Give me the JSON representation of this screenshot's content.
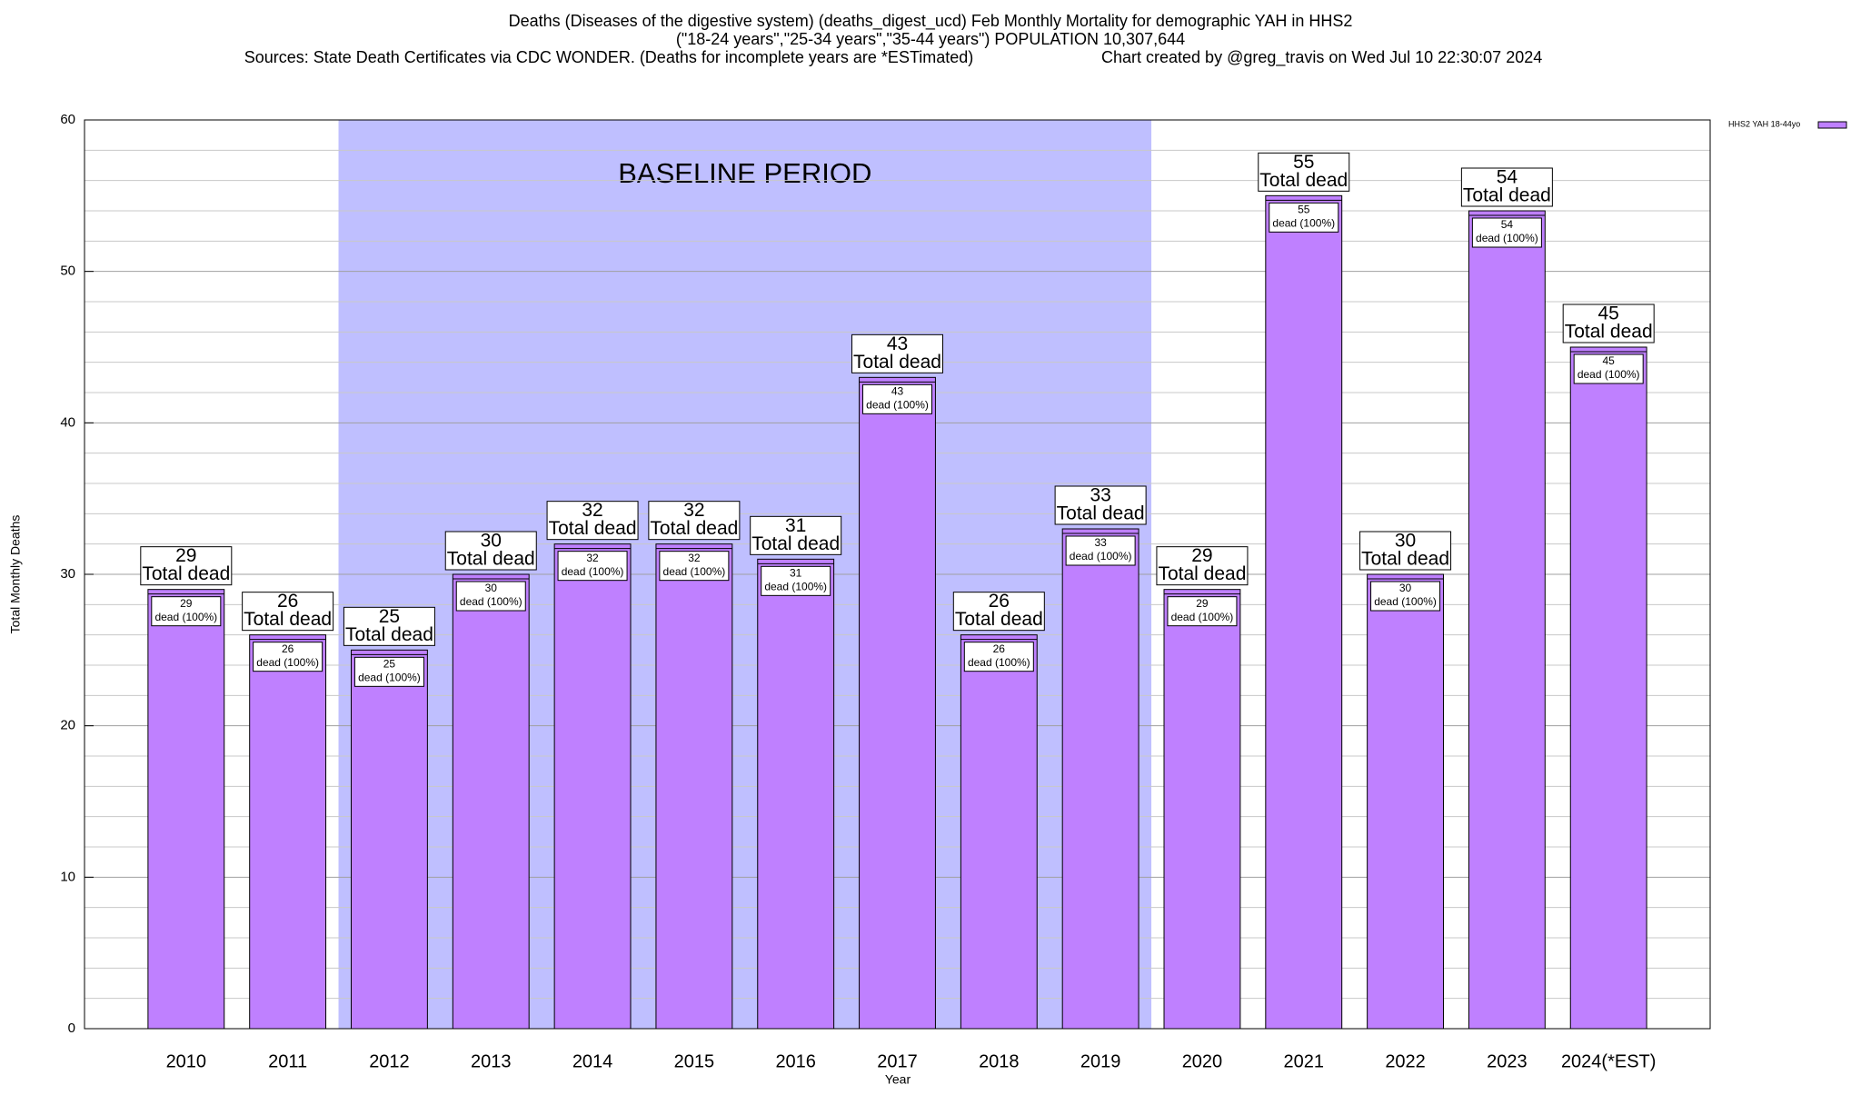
{
  "chart_data": {
    "type": "bar",
    "title": [
      "Deaths (Diseases of the digestive system) (deaths_digest_ucd) Feb Monthly Mortality for demographic YAH in HHS2",
      "(\"18-24 years\",\"25-34 years\",\"35-44 years\") POPULATION 10,307,644"
    ],
    "sources": "Sources: State Death Certificates via CDC WONDER. (Deaths for incomplete years are *ESTimated)",
    "credit": "Chart created by @greg_travis on Wed Jul 10 22:30:07 2024",
    "xlabel": "Year",
    "ylabel": "Total Monthly Deaths",
    "annotation": "BASELINE PERIOD",
    "baseline_span": [
      "2012",
      "2019"
    ],
    "baseline_color": "#bfbfff",
    "total_label": "Total dead",
    "segment_label": "dead (100%)",
    "categories": [
      "2010",
      "2011",
      "2012",
      "2013",
      "2014",
      "2015",
      "2016",
      "2017",
      "2018",
      "2019",
      "2020",
      "2021",
      "2022",
      "2023",
      "2024(*EST)"
    ],
    "series": [
      {
        "name": "HHS2 YAH 18-44yo",
        "color": "#bf80ff",
        "values": [
          29,
          26,
          25,
          30,
          32,
          32,
          31,
          43,
          26,
          33,
          29,
          55,
          30,
          54,
          45
        ]
      }
    ],
    "ylim": [
      0,
      60
    ],
    "yticks": [
      0,
      10,
      20,
      30,
      40,
      50,
      60
    ],
    "minor_yticks": [
      2,
      4,
      6,
      8,
      12,
      14,
      16,
      18,
      22,
      24,
      26,
      28,
      32,
      34,
      36,
      38,
      42,
      44,
      46,
      48,
      52,
      54,
      56,
      58
    ],
    "grid": true,
    "legend": "top-right"
  }
}
